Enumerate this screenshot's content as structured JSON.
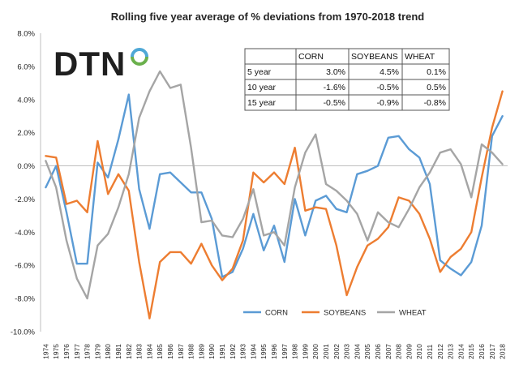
{
  "chart_data": {
    "type": "line",
    "title": "Rolling five year average of % deviations from 1970-2018 trend",
    "xlabel": "",
    "ylabel": "",
    "ylim": [
      -10,
      8
    ],
    "y_ticks": [
      "8.0%",
      "6.0%",
      "4.0%",
      "2.0%",
      "0.0%",
      "-2.0%",
      "-4.0%",
      "-6.0%",
      "-8.0%",
      "-10.0%"
    ],
    "y_tick_values": [
      8,
      6,
      4,
      2,
      0,
      -2,
      -4,
      -6,
      -8,
      -10
    ],
    "x": [
      "1974",
      "1975",
      "1976",
      "1977",
      "1978",
      "1979",
      "1980",
      "1981",
      "1982",
      "1983",
      "1984",
      "1985",
      "1986",
      "1987",
      "1988",
      "1989",
      "1990",
      "1991",
      "1992",
      "1993",
      "1994",
      "1995",
      "1996",
      "1997",
      "1998",
      "1999",
      "2000",
      "2001",
      "2002",
      "2003",
      "2004",
      "2005",
      "2006",
      "2007",
      "2008",
      "2009",
      "2010",
      "2011",
      "2012",
      "2013",
      "2014",
      "2015",
      "2016",
      "2017",
      "2018"
    ],
    "grid": false,
    "legend_position": "bottom-right",
    "series": [
      {
        "name": "CORN",
        "color": "#5B9BD5",
        "values": [
          -1.3,
          0.0,
          -2.8,
          -5.9,
          -5.9,
          0.2,
          -0.7,
          1.6,
          4.3,
          -1.4,
          -3.8,
          -0.5,
          -0.4,
          -1.0,
          -1.6,
          -1.6,
          -3.2,
          -6.7,
          -6.4,
          -5.0,
          -2.9,
          -5.1,
          -3.6,
          -5.8,
          -2.0,
          -4.2,
          -2.1,
          -1.8,
          -2.6,
          -2.8,
          -0.5,
          -0.3,
          0.0,
          1.7,
          1.8,
          1.0,
          0.5,
          -1.1,
          -5.7,
          -6.2,
          -6.6,
          -5.8,
          -3.6,
          1.8,
          3.0
        ]
      },
      {
        "name": "SOYBEANS",
        "color": "#ED7D31",
        "values": [
          0.6,
          0.5,
          -2.3,
          -2.1,
          -2.8,
          1.5,
          -1.7,
          -0.5,
          -1.5,
          -5.8,
          -9.2,
          -5.8,
          -5.2,
          -5.2,
          -5.9,
          -4.7,
          -6.0,
          -6.9,
          -6.2,
          -4.5,
          -0.4,
          -1.0,
          -0.4,
          -1.1,
          1.1,
          -2.7,
          -2.5,
          -2.6,
          -4.8,
          -7.8,
          -6.1,
          -4.8,
          -4.4,
          -3.7,
          -1.9,
          -2.1,
          -2.9,
          -4.4,
          -6.4,
          -5.5,
          -5.0,
          -4.0,
          -0.7,
          2.3,
          4.5
        ]
      },
      {
        "name": "WHEAT",
        "color": "#A5A5A5",
        "values": [
          0.3,
          -1.3,
          -4.5,
          -6.8,
          -8.0,
          -4.8,
          -4.1,
          -2.5,
          -0.5,
          2.9,
          4.5,
          5.7,
          4.7,
          4.9,
          1.1,
          -3.4,
          -3.3,
          -4.2,
          -4.3,
          -3.2,
          -1.4,
          -4.2,
          -4.0,
          -4.8,
          -1.3,
          0.8,
          1.9,
          -1.1,
          -1.5,
          -2.1,
          -2.9,
          -4.5,
          -2.8,
          -3.4,
          -3.7,
          -2.6,
          -1.3,
          -0.4,
          0.8,
          1.0,
          0.1,
          -1.9,
          1.3,
          0.8,
          0.1
        ]
      }
    ],
    "table": {
      "headers": [
        "",
        "CORN",
        "SOYBEANS",
        "WHEAT"
      ],
      "rows": [
        [
          "5 year",
          "3.0%",
          "4.5%",
          "0.1%"
        ],
        [
          "10 year",
          "-1.6%",
          "-0.5%",
          "0.5%"
        ],
        [
          "15 year",
          "-0.5%",
          "-0.9%",
          "-0.8%"
        ]
      ]
    },
    "logo": "DTN",
    "logo_colors": [
      "#1f1f1f",
      "#4fa8d6",
      "#6ab04c"
    ]
  }
}
